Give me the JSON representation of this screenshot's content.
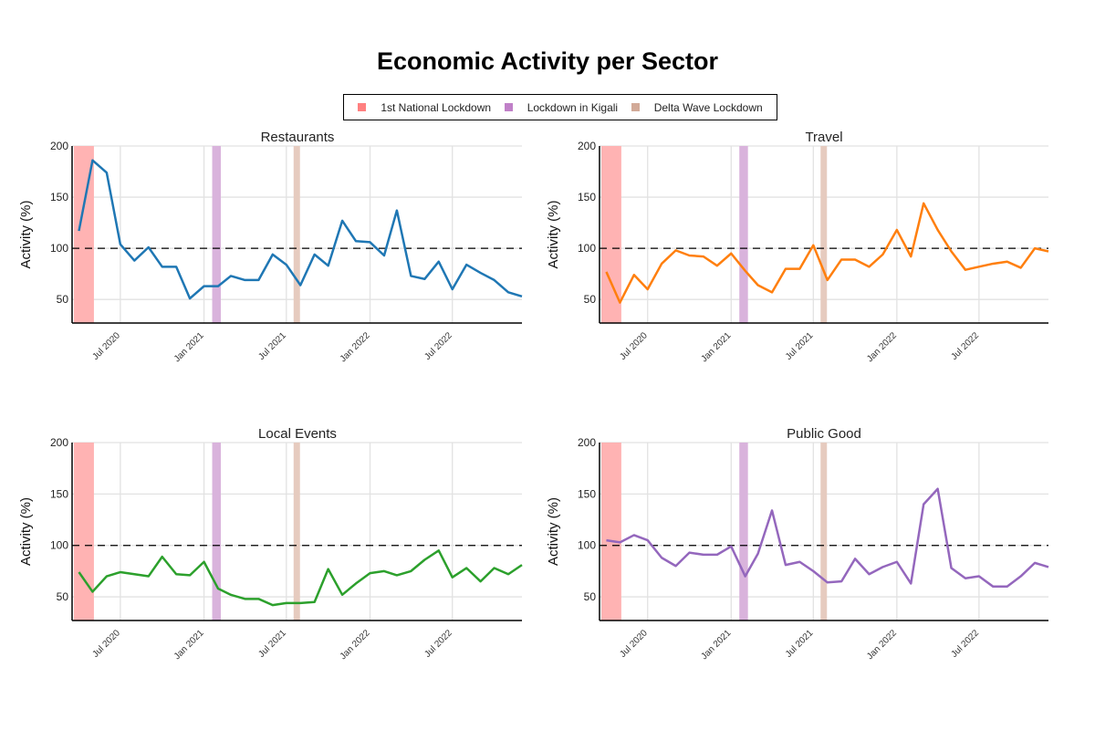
{
  "chart_data": {
    "type": "line",
    "title": "Economic Activity per Sector",
    "legend": {
      "placement": "top-center",
      "entries": [
        {
          "label": "1st National Lockdown",
          "color": "#ff8080",
          "band_color": "#ffb3b3",
          "start": "2020-03-21",
          "end": "2020-05-04"
        },
        {
          "label": "Lockdown in Kigali",
          "color": "#c080c8",
          "band_color": "#d9b3dc",
          "start": "2021-01-19",
          "end": "2021-02-07"
        },
        {
          "label": "Delta Wave Lockdown",
          "color": "#d2aa98",
          "band_color": "#e6cbbf",
          "start": "2021-07-17",
          "end": "2021-07-31"
        }
      ]
    },
    "xlim": [
      "2020-03-17",
      "2022-12-01"
    ],
    "ylim": [
      27,
      200
    ],
    "yticks": [
      50,
      100,
      150,
      200
    ],
    "xticks": [
      {
        "date": "2020-07-01",
        "label": "Jul 2020"
      },
      {
        "date": "2021-01-01",
        "label": "Jan 2021"
      },
      {
        "date": "2021-07-01",
        "label": "Jul 2021"
      },
      {
        "date": "2022-01-01",
        "label": "Jan 2022"
      },
      {
        "date": "2022-07-01",
        "label": "Jul 2022"
      }
    ],
    "reference_line": 100,
    "grid": true,
    "ylabel": "Activity (%)",
    "x_start_month": "2020-04",
    "panels": [
      {
        "title": "Restaurants",
        "color": "#1f77b4",
        "values": [
          117,
          186,
          174,
          104,
          88,
          101,
          82,
          82,
          51,
          63,
          63,
          73,
          69,
          69,
          94,
          84,
          64,
          94,
          83,
          127,
          107,
          106,
          93,
          137,
          73,
          70,
          87,
          60,
          84,
          76,
          69,
          57,
          53
        ]
      },
      {
        "title": "Travel",
        "color": "#ff7f0e",
        "values": [
          77,
          47,
          74,
          60,
          85,
          98,
          93,
          92,
          83,
          95,
          78,
          64,
          57,
          80,
          80,
          103,
          69,
          89,
          89,
          82,
          94,
          118,
          92,
          144,
          118,
          97,
          79,
          82,
          85,
          87,
          81,
          100,
          97
        ]
      },
      {
        "title": "Local Events",
        "color": "#2ca02c",
        "values": [
          74,
          55,
          70,
          74,
          72,
          70,
          89,
          72,
          71,
          84,
          58,
          52,
          48,
          48,
          42,
          44,
          44,
          45,
          77,
          52,
          63,
          73,
          75,
          71,
          75,
          86,
          95,
          69,
          78,
          65,
          78,
          72,
          81
        ]
      },
      {
        "title": "Public Good",
        "color": "#9467bd",
        "values": [
          105,
          103,
          110,
          105,
          88,
          80,
          93,
          91,
          91,
          99,
          70,
          92,
          134,
          81,
          84,
          75,
          64,
          65,
          87,
          72,
          79,
          84,
          63,
          140,
          155,
          78,
          68,
          70,
          60,
          60,
          70,
          83,
          79
        ]
      }
    ]
  }
}
